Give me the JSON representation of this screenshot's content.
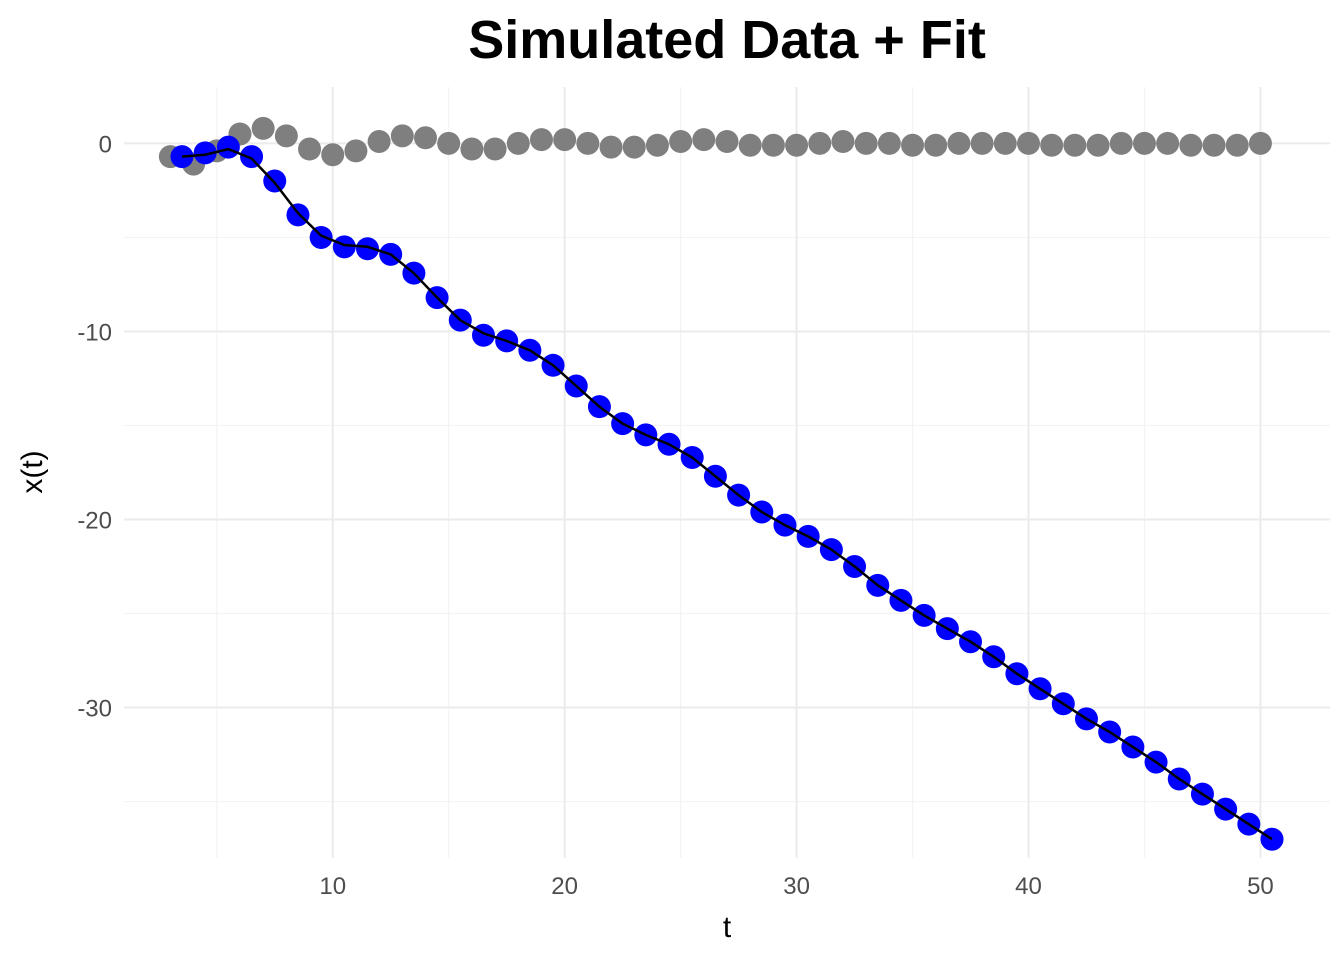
{
  "chart_data": {
    "type": "scatter",
    "title": "Simulated Data + Fit",
    "xlabel": "t",
    "ylabel": "x(t)",
    "xlim": [
      1,
      53
    ],
    "ylim": [
      -38,
      3
    ],
    "x_ticks": [
      10,
      20,
      30,
      40,
      50
    ],
    "y_ticks": [
      0,
      -10,
      -20,
      -30
    ],
    "x_tick_labels": [
      "10",
      "20",
      "30",
      "40",
      "50"
    ],
    "y_tick_labels": [
      "0",
      "-10",
      "-20",
      "-30"
    ],
    "grid": true,
    "legend": "none",
    "colors": {
      "gray_points": "#7f7f7f",
      "blue_points": "#0000ff",
      "fit_line": "#000000"
    },
    "series": [
      {
        "role": "gray-points",
        "x": [
          3,
          4,
          5,
          6,
          7,
          8,
          9,
          10,
          11,
          12,
          13,
          14,
          15,
          16,
          17,
          18,
          19,
          20,
          21,
          22,
          23,
          24,
          25,
          26,
          27,
          28,
          29,
          30,
          31,
          32,
          33,
          34,
          35,
          36,
          37,
          38,
          39,
          40,
          41,
          42,
          43,
          44,
          45,
          46,
          47,
          48,
          49,
          50
        ],
        "y": [
          -0.7,
          -1.1,
          -0.4,
          0.5,
          0.8,
          0.4,
          -0.3,
          -0.6,
          -0.4,
          0.1,
          0.4,
          0.3,
          0.0,
          -0.3,
          -0.3,
          0.0,
          0.2,
          0.2,
          0.0,
          -0.2,
          -0.2,
          -0.1,
          0.1,
          0.2,
          0.1,
          -0.1,
          -0.1,
          -0.1,
          0.0,
          0.1,
          0.0,
          0.0,
          -0.1,
          -0.1,
          0.0,
          0.0,
          0.0,
          0.0,
          -0.1,
          -0.1,
          -0.1,
          0.0,
          0.0,
          0.0,
          -0.1,
          -0.1,
          -0.1,
          0.0
        ]
      },
      {
        "role": "blue-points",
        "x": [
          3.5,
          4.5,
          5.5,
          6.5,
          7.5,
          8.5,
          9.5,
          10.5,
          11.5,
          12.5,
          13.5,
          14.5,
          15.5,
          16.5,
          17.5,
          18.5,
          19.5,
          20.5,
          21.5,
          22.5,
          23.5,
          24.5,
          25.5,
          26.5,
          27.5,
          28.5,
          29.5,
          30.5,
          31.5,
          32.5,
          33.5,
          34.5,
          35.5,
          36.5,
          37.5,
          38.5,
          39.5,
          40.5,
          41.5,
          42.5,
          43.5,
          44.5,
          45.5,
          46.5,
          47.5,
          48.5,
          49.5,
          50.5
        ],
        "y": [
          -0.7,
          -0.5,
          -0.2,
          -0.7,
          -2.0,
          -3.8,
          -5.0,
          -5.5,
          -5.6,
          -5.9,
          -6.9,
          -8.2,
          -9.4,
          -10.2,
          -10.5,
          -11.0,
          -11.8,
          -12.9,
          -14.0,
          -14.9,
          -15.5,
          -16.0,
          -16.7,
          -17.7,
          -18.7,
          -19.6,
          -20.3,
          -20.9,
          -21.6,
          -22.5,
          -23.5,
          -24.3,
          -25.1,
          -25.8,
          -26.5,
          -27.3,
          -28.2,
          -29.0,
          -29.8,
          -30.6,
          -31.3,
          -32.1,
          -32.9,
          -33.8,
          -34.6,
          -35.4,
          -36.2,
          -37.0
        ]
      },
      {
        "role": "fit-line",
        "x": [
          3.5,
          4.5,
          5.5,
          6.5,
          7.5,
          8.5,
          9.5,
          10.5,
          11.5,
          12.5,
          13.5,
          14.5,
          15.5,
          16.5,
          17.5,
          18.5,
          19.5,
          20.5,
          21.5,
          22.5,
          23.5,
          24.5,
          25.5,
          26.5,
          27.5,
          28.5,
          29.5,
          30.5,
          31.5,
          32.5,
          33.5,
          34.5,
          35.5,
          36.5,
          37.5,
          38.5,
          39.5,
          40.5,
          41.5,
          42.5,
          43.5,
          44.5,
          45.5,
          46.5,
          47.5,
          48.5,
          49.5,
          50.5
        ],
        "y": [
          -0.7,
          -0.6,
          -0.3,
          -0.8,
          -2.1,
          -3.7,
          -4.9,
          -5.4,
          -5.5,
          -5.9,
          -6.9,
          -8.2,
          -9.4,
          -10.1,
          -10.5,
          -11.0,
          -11.8,
          -12.9,
          -14.0,
          -14.9,
          -15.5,
          -16.0,
          -16.7,
          -17.7,
          -18.7,
          -19.6,
          -20.3,
          -20.9,
          -21.6,
          -22.5,
          -23.5,
          -24.3,
          -25.1,
          -25.8,
          -26.5,
          -27.3,
          -28.2,
          -29.0,
          -29.8,
          -30.6,
          -31.3,
          -32.1,
          -32.9,
          -33.8,
          -34.6,
          -35.4,
          -36.2,
          -37.0
        ]
      }
    ]
  }
}
